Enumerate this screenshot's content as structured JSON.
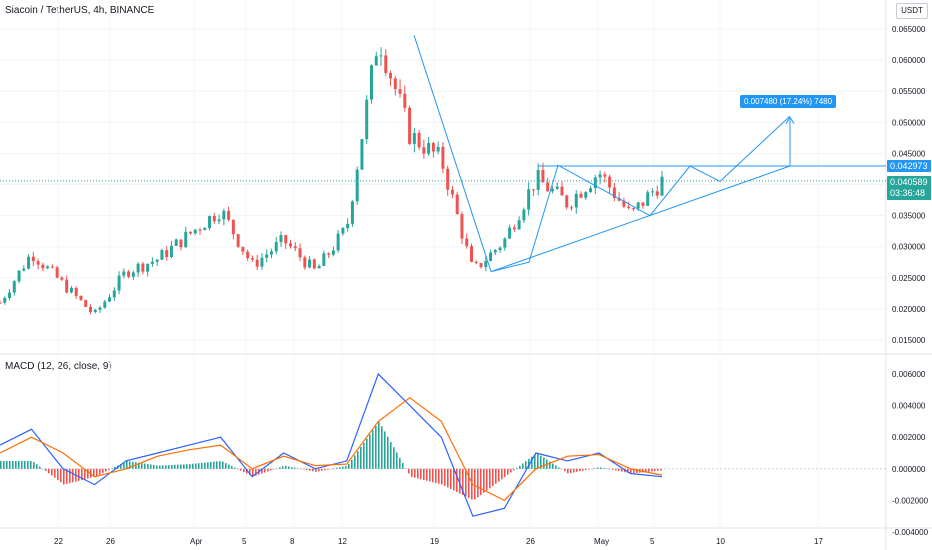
{
  "header": {
    "title": "Siacoin / TetherUS, 4h, BINANCE",
    "currency": "USDT"
  },
  "macd_panel": {
    "title": "MACD (12, 26, close, 9)"
  },
  "labels": {
    "resistance_price": "0.042973",
    "last_price": "0.040589",
    "countdown": "03:36:48",
    "projection": "0.007480 (17.24%) 7480"
  },
  "colors": {
    "up": "#26a69a",
    "down": "#ef5350",
    "drawing": "#2196f3",
    "macd_line": "#2962ff",
    "signal_line": "#ff6d00"
  },
  "chart_data": [
    {
      "type": "candlestick",
      "title": "Siacoin / TetherUS, 4h, BINANCE",
      "x_ticks": [
        "22",
        "26",
        "Apr",
        "5",
        "8",
        "12",
        "19",
        "26",
        "May",
        "5",
        "10",
        "17"
      ],
      "y_ticks": [
        "0.065000",
        "0.060000",
        "0.055000",
        "0.050000",
        "0.045000",
        "0.040000",
        "0.035000",
        "0.030000",
        "0.025000",
        "0.020000",
        "0.015000"
      ],
      "ylim": [
        0.0125,
        0.067
      ],
      "price_path_approx": [
        {
          "x": "Mar 18",
          "close": 0.021
        },
        {
          "x": "Mar 20",
          "close": 0.029
        },
        {
          "x": "Mar 22",
          "close": 0.024
        },
        {
          "x": "Mar 25",
          "close": 0.019
        },
        {
          "x": "Mar 29",
          "close": 0.026
        },
        {
          "x": "Apr 1",
          "close": 0.028
        },
        {
          "x": "Apr 3",
          "close": 0.032
        },
        {
          "x": "Apr 6",
          "close": 0.036
        },
        {
          "x": "Apr 8",
          "close": 0.027
        },
        {
          "x": "Apr 10",
          "close": 0.031
        },
        {
          "x": "Apr 13",
          "close": 0.026
        },
        {
          "x": "Apr 15",
          "close": 0.033
        },
        {
          "x": "Apr 17",
          "close": 0.064
        },
        {
          "x": "Apr 19",
          "close": 0.048
        },
        {
          "x": "Apr 21",
          "close": 0.044
        },
        {
          "x": "Apr 23",
          "close": 0.026
        },
        {
          "x": "Apr 25",
          "close": 0.031
        },
        {
          "x": "Apr 27",
          "close": 0.041
        },
        {
          "x": "Apr 30",
          "close": 0.037
        },
        {
          "x": "May 3",
          "close": 0.042
        },
        {
          "x": "May 5",
          "close": 0.035
        },
        {
          "x": "May 6",
          "close": 0.0406
        }
      ],
      "annotations": {
        "resistance_level": 0.042973,
        "last_price": 0.040589,
        "projection_change": "0.007480 (17.24%) 7480"
      }
    },
    {
      "type": "line",
      "title": "MACD (12, 26, close, 9)",
      "y_ticks": [
        "0.006000",
        "0.004000",
        "0.002000",
        "0.000000",
        "-0.002000",
        "-0.004000"
      ],
      "ylim": [
        -0.0042,
        0.0065
      ],
      "series": [
        {
          "values": [
            0.0015,
            0.0025,
            0.0,
            -0.001,
            0.0005,
            0.001,
            0.0015,
            0.002,
            -0.0005,
            0.001,
            0.0,
            0.0005,
            0.006,
            0.004,
            0.002,
            -0.003,
            -0.0025,
            0.001,
            0.0005,
            0.001,
            -0.0003,
            -0.0005
          ]
        },
        {
          "values": [
            0.001,
            0.002,
            0.001,
            -0.0005,
            0.0,
            0.0008,
            0.0012,
            0.0015,
            0.0,
            0.0008,
            0.0002,
            0.0003,
            0.003,
            0.0045,
            0.003,
            -0.001,
            -0.002,
            0.0,
            0.0008,
            0.0009,
            0.0,
            -0.0004
          ]
        }
      ]
    }
  ]
}
